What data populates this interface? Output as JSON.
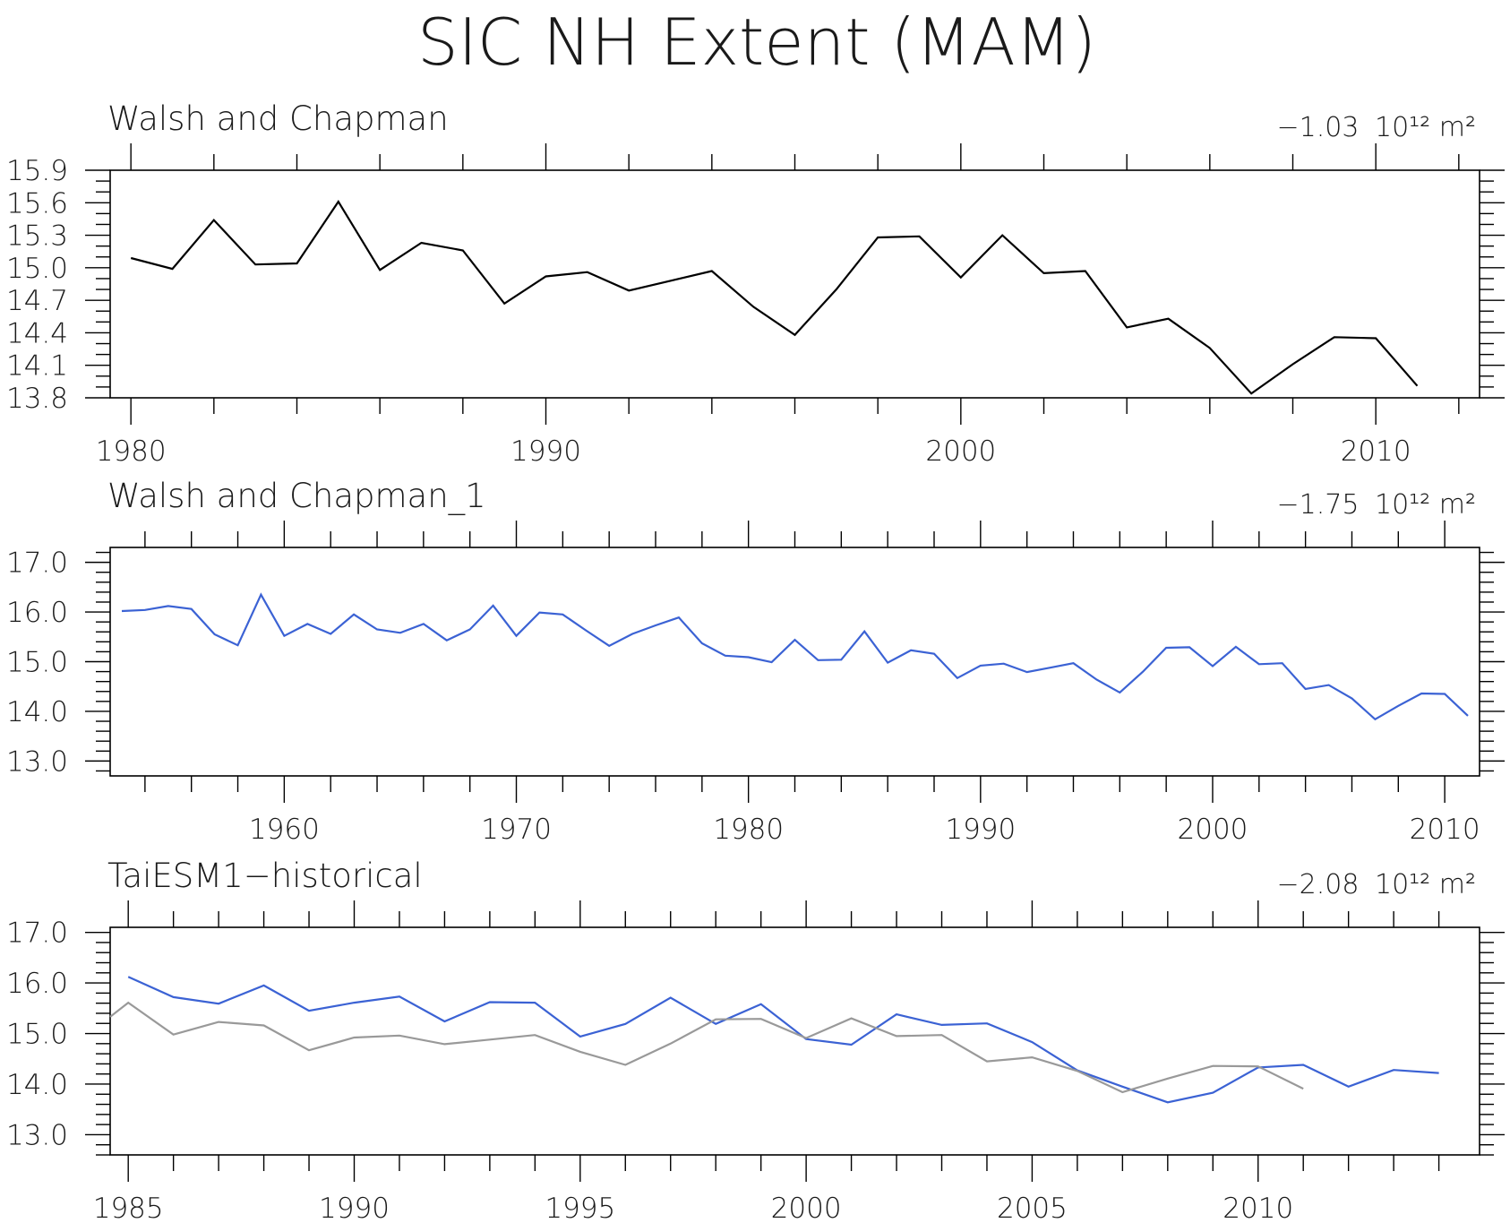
{
  "figure": {
    "title": "SIC NH Extent (MAM)"
  },
  "chart_data": [
    {
      "type": "line",
      "title": "Walsh and Chapman",
      "trend_value": "−1.03",
      "trend_unit": "10¹² m²",
      "xlim": [
        1979.5,
        2012.5
      ],
      "ylim": [
        13.8,
        15.9
      ],
      "x_ticks": [
        1980,
        1990,
        2000,
        2010
      ],
      "x_tick_labels": [
        "1980",
        "1990",
        "2000",
        "2010"
      ],
      "x_minor_step": 2,
      "y_ticks": [
        13.8,
        14.1,
        14.4,
        14.7,
        15.0,
        15.3,
        15.6,
        15.9
      ],
      "y_tick_labels": [
        "13.8",
        "14.1",
        "14.4",
        "14.7",
        "15.0",
        "15.3",
        "15.6",
        "15.9"
      ],
      "y_minor_step": 0.1,
      "series": [
        {
          "color": "#000000",
          "x": [
            1980,
            1981,
            1982,
            1983,
            1984,
            1985,
            1986,
            1987,
            1988,
            1989,
            1990,
            1991,
            1992,
            1993,
            1994,
            1995,
            1996,
            1997,
            1998,
            1999,
            2000,
            2001,
            2002,
            2003,
            2004,
            2005,
            2006,
            2007,
            2008,
            2009,
            2010,
            2011
          ],
          "y": [
            15.09,
            14.99,
            15.44,
            15.03,
            15.04,
            15.61,
            14.98,
            15.23,
            15.16,
            14.67,
            14.92,
            14.96,
            14.79,
            14.88,
            14.97,
            14.64,
            14.38,
            14.8,
            15.28,
            15.29,
            14.91,
            15.3,
            14.95,
            14.97,
            14.45,
            14.53,
            14.26,
            13.84,
            14.11,
            14.36,
            14.35,
            13.91
          ]
        }
      ]
    },
    {
      "type": "line",
      "title": "Walsh and Chapman_1",
      "trend_value": "−1.75",
      "trend_unit": "10¹² m²",
      "xlim": [
        1952.5,
        2011.5
      ],
      "ylim": [
        12.7,
        17.3
      ],
      "x_ticks": [
        1960,
        1970,
        1980,
        1990,
        2000,
        2010
      ],
      "x_tick_labels": [
        "1960",
        "1970",
        "1980",
        "1990",
        "2000",
        "2010"
      ],
      "x_minor_step": 2,
      "y_ticks": [
        13.0,
        14.0,
        15.0,
        16.0,
        17.0
      ],
      "y_tick_labels": [
        "13.0",
        "14.0",
        "15.0",
        "16.0",
        "17.0"
      ],
      "y_minor_step": 0.2,
      "series": [
        {
          "color": "#3b62d4",
          "x": [
            1953,
            1954,
            1955,
            1956,
            1957,
            1958,
            1959,
            1960,
            1961,
            1962,
            1963,
            1964,
            1965,
            1966,
            1967,
            1968,
            1969,
            1970,
            1971,
            1972,
            1973,
            1974,
            1975,
            1976,
            1977,
            1978,
            1979,
            1980,
            1981,
            1982,
            1983,
            1984,
            1985,
            1986,
            1987,
            1988,
            1989,
            1990,
            1991,
            1992,
            1993,
            1994,
            1995,
            1996,
            1997,
            1998,
            1999,
            2000,
            2001,
            2002,
            2003,
            2004,
            2005,
            2006,
            2007,
            2008,
            2009,
            2010,
            2011
          ],
          "y": [
            16.02,
            16.04,
            16.12,
            16.06,
            15.55,
            15.33,
            16.35,
            15.52,
            15.76,
            15.56,
            15.95,
            15.65,
            15.58,
            15.76,
            15.43,
            15.65,
            16.13,
            15.52,
            15.99,
            15.95,
            15.63,
            15.32,
            15.56,
            15.73,
            15.89,
            15.37,
            15.12,
            15.09,
            14.99,
            15.44,
            15.03,
            15.04,
            15.61,
            14.98,
            15.23,
            15.16,
            14.67,
            14.92,
            14.96,
            14.79,
            14.88,
            14.97,
            14.64,
            14.38,
            14.8,
            15.28,
            15.29,
            14.91,
            15.3,
            14.95,
            14.97,
            14.45,
            14.53,
            14.26,
            13.84,
            14.11,
            14.36,
            14.35,
            13.91
          ]
        }
      ]
    },
    {
      "type": "line",
      "title": "TaiESM1−historical",
      "trend_value": "−2.08",
      "trend_unit": "10¹² m²",
      "xlim": [
        1984.6,
        2014.9
      ],
      "ylim": [
        12.6,
        17.1
      ],
      "x_ticks": [
        1985,
        1990,
        1995,
        2000,
        2005,
        2010
      ],
      "x_tick_labels": [
        "1985",
        "1990",
        "1995",
        "2000",
        "2005",
        "2010"
      ],
      "x_minor_step": 1,
      "y_ticks": [
        13.0,
        14.0,
        15.0,
        16.0,
        17.0
      ],
      "y_tick_labels": [
        "13.0",
        "14.0",
        "15.0",
        "16.0",
        "17.0"
      ],
      "y_minor_step": 0.2,
      "series": [
        {
          "color": "#3b62d4",
          "x": [
            1985,
            1986,
            1987,
            1988,
            1989,
            1990,
            1991,
            1992,
            1993,
            1994,
            1995,
            1996,
            1997,
            1998,
            1999,
            2000,
            2001,
            2002,
            2003,
            2004,
            2005,
            2006,
            2007,
            2008,
            2009,
            2010,
            2011,
            2012,
            2013,
            2014
          ],
          "y": [
            16.12,
            15.72,
            15.59,
            15.95,
            15.45,
            15.61,
            15.73,
            15.24,
            15.62,
            15.61,
            14.94,
            15.19,
            15.71,
            15.19,
            15.58,
            14.89,
            14.78,
            15.38,
            15.17,
            15.2,
            14.83,
            14.27,
            13.95,
            13.64,
            13.83,
            14.33,
            14.38,
            13.95,
            14.28,
            14.22
          ]
        },
        {
          "color": "#999999",
          "x": [
            1984.6,
            1985,
            1986,
            1987,
            1988,
            1989,
            1990,
            1991,
            1992,
            1993,
            1994,
            1995,
            1996,
            1997,
            1998,
            1999,
            2000,
            2001,
            2002,
            2003,
            2004,
            2005,
            2006,
            2007,
            2008,
            2009,
            2010,
            2011
          ],
          "y": [
            15.33,
            15.61,
            14.98,
            15.23,
            15.16,
            14.67,
            14.92,
            14.96,
            14.79,
            14.88,
            14.97,
            14.64,
            14.38,
            14.8,
            15.28,
            15.29,
            14.91,
            15.3,
            14.95,
            14.97,
            14.45,
            14.53,
            14.26,
            13.84,
            14.11,
            14.36,
            14.35,
            13.91
          ]
        }
      ]
    }
  ]
}
